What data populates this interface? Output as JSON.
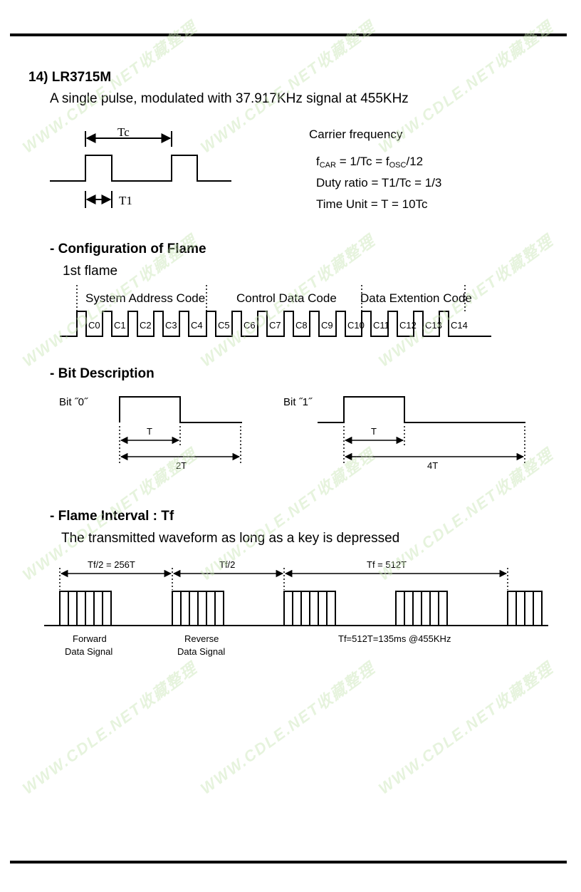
{
  "section": {
    "title": "14) LR3715M",
    "subtitle": "A single pulse, modulated with 37.917KHz signal at 455KHz"
  },
  "carrier": {
    "tc_label": "Tc",
    "t1_label": "T1",
    "heading": "Carrier frequency",
    "formula_prefix": "f",
    "formula_sub1": "CAR",
    "formula_mid": " = 1/Tc = f",
    "formula_sub2": "OSC",
    "formula_suffix": "/12",
    "duty": "Duty ratio = T1/Tc = 1/3",
    "time_unit": "Time Unit = T = 10Tc"
  },
  "config": {
    "heading": "- Configuration of Flame",
    "first_flame": "1st flame",
    "groups": [
      "System Address Code",
      "Control Data Code",
      "Data Extention Code"
    ],
    "bits": [
      "C0",
      "C1",
      "C2",
      "C3",
      "C4",
      "C5",
      "C6",
      "C7",
      "C8",
      "C9",
      "C10",
      "C11",
      "C12",
      "C13",
      "C14"
    ]
  },
  "bit_desc": {
    "heading": "- Bit Description",
    "bit0_label": "Bit ˝0˝",
    "bit1_label": "Bit ˝1˝",
    "t_label": "T",
    "two_t": "2T",
    "four_t": "4T"
  },
  "interval": {
    "heading": "- Flame Interval : Tf",
    "description": "The transmitted waveform as long as a key is depressed",
    "tf_half_256": "Tf/2 = 256T",
    "tf_half": "Tf/2",
    "tf_512": "Tf = 512T",
    "forward_line1": "Forward",
    "forward_line2": "Data Signal",
    "reverse_line1": "Reverse",
    "reverse_line2": "Data Signal",
    "timing_note": "Tf=512T=135ms  @455KHz"
  },
  "watermark": {
    "text": "WWW.CDLE.NET收藏整理"
  }
}
